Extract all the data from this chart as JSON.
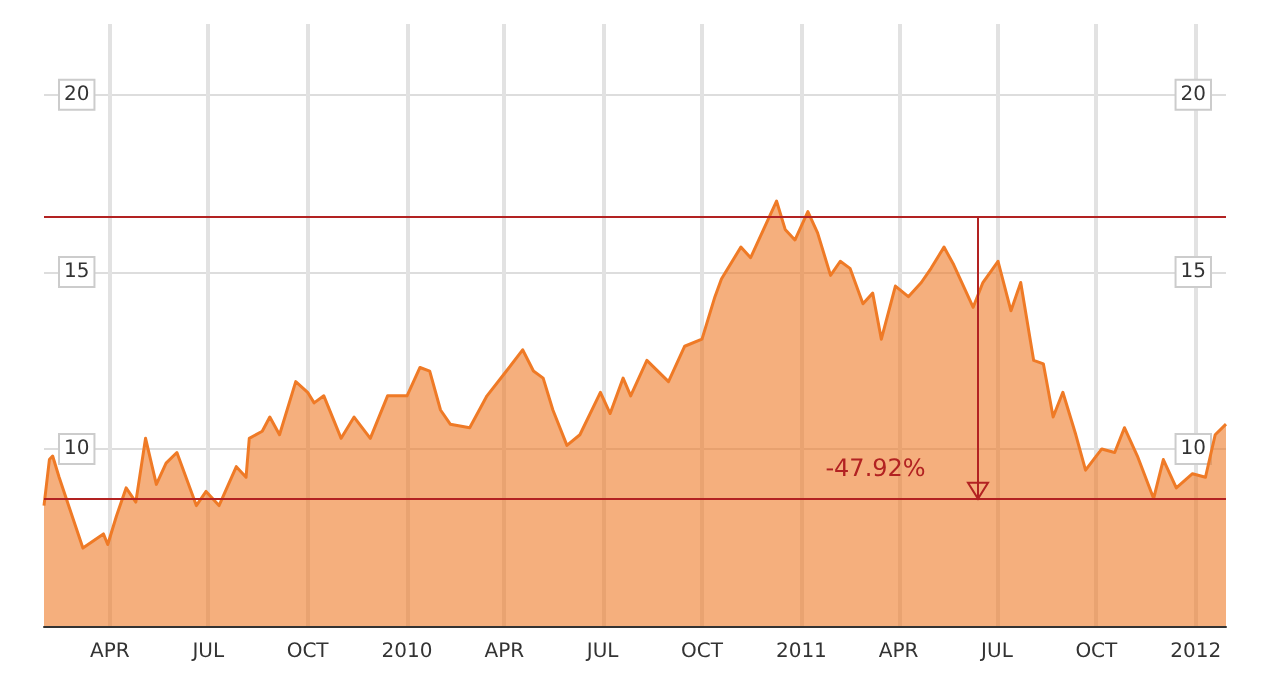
{
  "chart_data": {
    "type": "area",
    "x": [
      "2009-01-30",
      "2009-02-04",
      "2009-02-07",
      "2009-02-13",
      "2009-03-07",
      "2009-03-26",
      "2009-03-30",
      "2009-04-07",
      "2009-04-16",
      "2009-04-25",
      "2009-05-04",
      "2009-05-14",
      "2009-05-23",
      "2009-06-02",
      "2009-06-20",
      "2009-06-29",
      "2009-07-11",
      "2009-07-27",
      "2009-08-05",
      "2009-08-08",
      "2009-08-20",
      "2009-08-27",
      "2009-09-05",
      "2009-09-20",
      "2009-10-01",
      "2009-10-07",
      "2009-10-16",
      "2009-11-01",
      "2009-11-13",
      "2009-11-28",
      "2009-12-14",
      "2010-01-01",
      "2010-01-13",
      "2010-01-22",
      "2010-02-01",
      "2010-02-10",
      "2010-02-28",
      "2010-03-16",
      "2010-04-03",
      "2010-04-18",
      "2010-04-28",
      "2010-05-07",
      "2010-05-16",
      "2010-05-29",
      "2010-06-10",
      "2010-06-29",
      "2010-07-08",
      "2010-07-20",
      "2010-07-27",
      "2010-08-11",
      "2010-08-31",
      "2010-09-15",
      "2010-10-01",
      "2010-10-13",
      "2010-10-19",
      "2010-11-06",
      "2010-11-15",
      "2010-11-27",
      "2010-12-09",
      "2010-12-17",
      "2010-12-26",
      "2011-01-07",
      "2011-01-16",
      "2011-01-28",
      "2011-02-06",
      "2011-02-15",
      "2011-02-27",
      "2011-03-08",
      "2011-03-16",
      "2011-03-29",
      "2011-04-10",
      "2011-04-22",
      "2011-05-01",
      "2011-05-13",
      "2011-05-22",
      "2011-06-09",
      "2011-06-18",
      "2011-07-02",
      "2011-07-14",
      "2011-07-23",
      "2011-08-04",
      "2011-08-13",
      "2011-08-22",
      "2011-08-31",
      "2011-09-12",
      "2011-09-21",
      "2011-10-06",
      "2011-10-18",
      "2011-10-27",
      "2011-11-08",
      "2011-11-23",
      "2011-12-02",
      "2011-12-14",
      "2011-12-29",
      "2012-01-10",
      "2012-01-19",
      "2012-01-29"
    ],
    "series": [
      {
        "color": "#ef7a26",
        "values": [
          8.4,
          9.7,
          9.8,
          9.2,
          7.2,
          7.6,
          7.3,
          8.1,
          8.9,
          8.5,
          10.3,
          9.0,
          9.6,
          9.9,
          8.4,
          8.8,
          8.4,
          9.5,
          9.2,
          10.3,
          10.5,
          10.9,
          10.4,
          11.9,
          11.6,
          11.3,
          11.5,
          10.3,
          10.9,
          10.3,
          11.5,
          11.5,
          12.3,
          12.2,
          11.1,
          10.7,
          10.6,
          11.5,
          12.2,
          12.8,
          12.2,
          12.0,
          11.1,
          10.1,
          10.4,
          11.6,
          11.0,
          12.0,
          11.5,
          12.5,
          11.9,
          12.9,
          13.1,
          14.3,
          14.8,
          15.7,
          15.4,
          16.2,
          17.0,
          16.2,
          15.9,
          16.7,
          16.1,
          14.9,
          15.3,
          15.1,
          14.1,
          14.4,
          13.1,
          14.6,
          14.3,
          14.7,
          15.1,
          15.7,
          15.2,
          14.0,
          14.7,
          15.3,
          13.9,
          14.7,
          12.5,
          12.4,
          10.9,
          11.6,
          10.4,
          9.4,
          10.0,
          9.9,
          10.6,
          9.8,
          8.6,
          9.7,
          8.9,
          9.3,
          9.2,
          10.4,
          10.7
        ]
      }
    ],
    "xlim": [
      "2009-01-30",
      "2012-01-29"
    ],
    "xticks": [
      {
        "value": "2009-04-01",
        "label": "APR"
      },
      {
        "value": "2009-07-01",
        "label": "JUL"
      },
      {
        "value": "2009-10-01",
        "label": "OCT"
      },
      {
        "value": "2010-01-01",
        "label": "2010"
      },
      {
        "value": "2010-04-01",
        "label": "APR"
      },
      {
        "value": "2010-07-01",
        "label": "JUL"
      },
      {
        "value": "2010-10-01",
        "label": "OCT"
      },
      {
        "value": "2011-01-01",
        "label": "2011"
      },
      {
        "value": "2011-04-01",
        "label": "APR"
      },
      {
        "value": "2011-07-01",
        "label": "JUL"
      },
      {
        "value": "2011-10-01",
        "label": "OCT"
      },
      {
        "value": "2012-01-01",
        "label": "2012"
      }
    ],
    "ylim": [
      5,
      22
    ],
    "yticks": [
      10,
      15,
      20
    ],
    "y2lim": [
      5,
      22
    ],
    "y2ticks": [
      10,
      15,
      20
    ],
    "ref_lines": [
      {
        "axis": "y",
        "value": 16.54,
        "label": null,
        "color": "#b22222"
      },
      {
        "axis": "y",
        "value": 8.61,
        "label": null,
        "color": "#b22222"
      }
    ],
    "annotations": [
      {
        "text": "-47.92%",
        "x": "2011-01-14",
        "y": 8.61
      }
    ],
    "grid": true
  }
}
